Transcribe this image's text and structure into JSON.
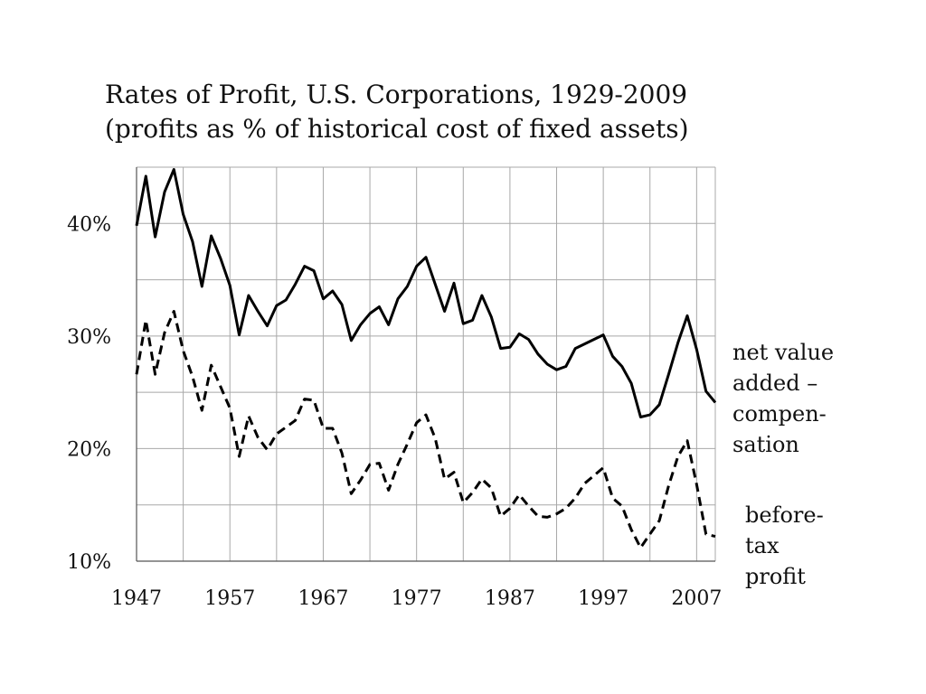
{
  "chart_data": {
    "type": "line",
    "title": "Rates of Profit, U.S. Corporations, 1929-2009",
    "subtitle": "(profits as % of historical cost of fixed assets)",
    "xlabel": "",
    "ylabel": "",
    "xlim": [
      1947,
      2009
    ],
    "ylim": [
      10,
      45
    ],
    "x_ticks": [
      1947,
      1957,
      1967,
      1977,
      1987,
      1997,
      2007
    ],
    "y_ticks": [
      10,
      20,
      30,
      40
    ],
    "y_tick_labels": [
      "10%",
      "20%",
      "30%",
      "40%"
    ],
    "grid": true,
    "x": [
      1947,
      1948,
      1949,
      1950,
      1951,
      1952,
      1953,
      1954,
      1955,
      1956,
      1957,
      1958,
      1959,
      1960,
      1961,
      1962,
      1963,
      1964,
      1965,
      1966,
      1967,
      1968,
      1969,
      1970,
      1971,
      1972,
      1973,
      1974,
      1975,
      1976,
      1977,
      1978,
      1979,
      1980,
      1981,
      1982,
      1983,
      1984,
      1985,
      1986,
      1987,
      1988,
      1989,
      1990,
      1991,
      1992,
      1993,
      1994,
      1995,
      1996,
      1997,
      1998,
      1999,
      2000,
      2001,
      2002,
      2003,
      2004,
      2005,
      2006,
      2007,
      2008,
      2009
    ],
    "series": [
      {
        "name_lines": [
          "net value",
          "added –",
          "compen-",
          "sation"
        ],
        "style": "solid",
        "values": [
          39.8,
          44.2,
          38.8,
          42.8,
          44.8,
          40.8,
          38.4,
          34.4,
          38.9,
          36.9,
          34.5,
          30.1,
          33.6,
          32.2,
          30.9,
          32.7,
          33.2,
          34.6,
          36.2,
          35.8,
          33.3,
          34.0,
          32.8,
          29.6,
          31.0,
          32.0,
          32.6,
          31.0,
          33.3,
          34.4,
          36.2,
          37.0,
          34.6,
          32.2,
          34.7,
          31.1,
          31.4,
          33.6,
          31.7,
          28.9,
          29.0,
          30.2,
          29.7,
          28.4,
          27.5,
          27.0,
          27.3,
          28.9,
          29.3,
          29.7,
          30.1,
          28.2,
          27.3,
          25.8,
          22.8,
          23.0,
          23.9,
          26.6,
          29.4,
          31.8,
          28.8,
          25.1,
          24.1
        ]
      },
      {
        "name_lines": [
          "before-",
          "tax",
          "profit"
        ],
        "style": "dashed",
        "values": [
          26.6,
          31.4,
          26.6,
          30.3,
          32.2,
          28.7,
          26.4,
          23.4,
          27.4,
          25.5,
          23.6,
          19.3,
          22.9,
          21.0,
          19.9,
          21.3,
          21.9,
          22.5,
          24.4,
          24.3,
          21.8,
          21.8,
          19.6,
          16.0,
          17.2,
          18.6,
          18.7,
          16.3,
          18.6,
          20.4,
          22.3,
          23.0,
          20.9,
          17.3,
          17.9,
          15.2,
          16.1,
          17.3,
          16.5,
          14.0,
          14.7,
          15.9,
          14.9,
          14.0,
          13.9,
          14.2,
          14.7,
          15.6,
          16.9,
          17.6,
          18.3,
          15.6,
          14.9,
          12.8,
          11.2,
          12.4,
          13.6,
          16.7,
          19.3,
          20.7,
          16.8,
          12.4,
          12.2
        ]
      }
    ]
  }
}
